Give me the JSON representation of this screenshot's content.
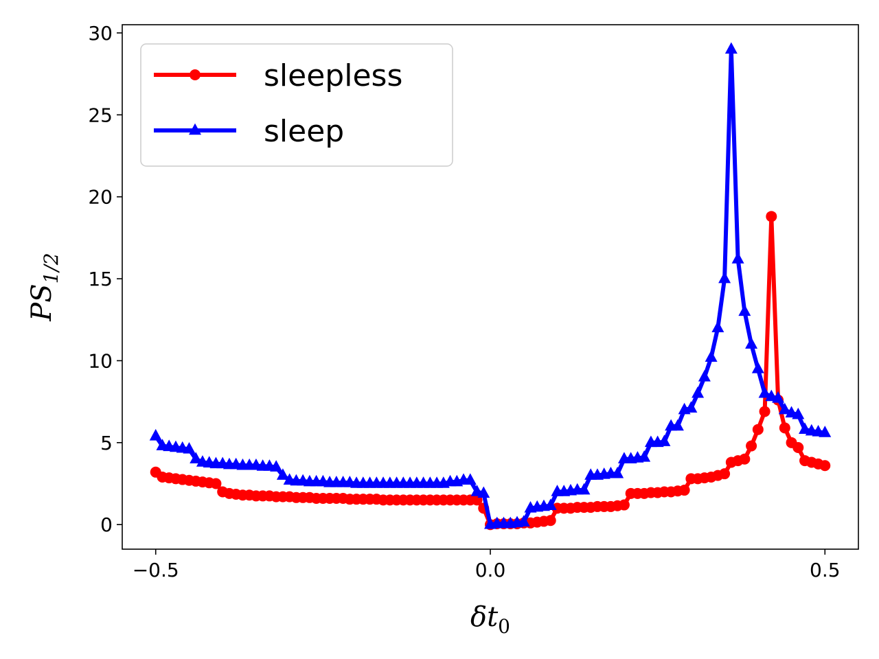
{
  "chart_data": {
    "type": "line",
    "xlabel": "δt",
    "xlabel_sub": "0",
    "ylabel": "PS",
    "ylabel_sub": "1/2",
    "xlim": [
      -0.55,
      0.55
    ],
    "ylim": [
      -1.5,
      30.5
    ],
    "xticks": [
      -0.5,
      0.0,
      0.5
    ],
    "xtick_labels": [
      "−0.5",
      "0.0",
      "0.5"
    ],
    "yticks": [
      0,
      5,
      10,
      15,
      20,
      25,
      30
    ],
    "ytick_labels": [
      "0",
      "5",
      "10",
      "15",
      "20",
      "25",
      "30"
    ],
    "grid": false,
    "legend_position": "top-left",
    "x": [
      -0.5,
      -0.49,
      -0.48,
      -0.47,
      -0.46,
      -0.45,
      -0.44,
      -0.43,
      -0.42,
      -0.41,
      -0.4,
      -0.39,
      -0.38,
      -0.37,
      -0.36,
      -0.35,
      -0.34,
      -0.33,
      -0.32,
      -0.31,
      -0.3,
      -0.29,
      -0.28,
      -0.27,
      -0.26,
      -0.25,
      -0.24,
      -0.23,
      -0.22,
      -0.21,
      -0.2,
      -0.19,
      -0.18,
      -0.17,
      -0.16,
      -0.15,
      -0.14,
      -0.13,
      -0.12,
      -0.11,
      -0.1,
      -0.09,
      -0.08,
      -0.07,
      -0.06,
      -0.05,
      -0.04,
      -0.03,
      -0.02,
      -0.01,
      0.0,
      0.01,
      0.02,
      0.03,
      0.04,
      0.05,
      0.06,
      0.07,
      0.08,
      0.09,
      0.1,
      0.11,
      0.12,
      0.13,
      0.14,
      0.15,
      0.16,
      0.17,
      0.18,
      0.19,
      0.2,
      0.21,
      0.22,
      0.23,
      0.24,
      0.25,
      0.26,
      0.27,
      0.28,
      0.29,
      0.3,
      0.31,
      0.32,
      0.33,
      0.34,
      0.35,
      0.36,
      0.37,
      0.38,
      0.39,
      0.4,
      0.41,
      0.42,
      0.43,
      0.44,
      0.45,
      0.46,
      0.47,
      0.48,
      0.49,
      0.5
    ],
    "series": [
      {
        "name": "sleepless",
        "color": "#ff0000",
        "marker": "circle",
        "values": [
          3.2,
          2.9,
          2.85,
          2.8,
          2.75,
          2.7,
          2.65,
          2.6,
          2.55,
          2.5,
          2.0,
          1.9,
          1.85,
          1.8,
          1.8,
          1.75,
          1.75,
          1.75,
          1.7,
          1.7,
          1.7,
          1.65,
          1.65,
          1.65,
          1.6,
          1.6,
          1.6,
          1.6,
          1.6,
          1.55,
          1.55,
          1.55,
          1.55,
          1.55,
          1.5,
          1.5,
          1.5,
          1.5,
          1.5,
          1.5,
          1.5,
          1.5,
          1.5,
          1.5,
          1.5,
          1.5,
          1.5,
          1.5,
          1.5,
          1.0,
          0.0,
          0.05,
          0.05,
          0.05,
          0.05,
          0.1,
          0.1,
          0.15,
          0.2,
          0.25,
          1.0,
          1.0,
          1.0,
          1.05,
          1.05,
          1.05,
          1.1,
          1.1,
          1.1,
          1.15,
          1.2,
          1.9,
          1.9,
          1.9,
          1.95,
          1.95,
          2.0,
          2.0,
          2.05,
          2.1,
          2.8,
          2.8,
          2.85,
          2.9,
          3.0,
          3.1,
          3.8,
          3.9,
          4.0,
          4.8,
          5.8,
          6.9,
          18.8,
          7.6,
          5.9,
          5.0,
          4.7,
          3.9,
          3.8,
          3.7,
          3.6
        ]
      },
      {
        "name": "sleep",
        "color": "#0000ff",
        "marker": "triangle",
        "values": [
          5.4,
          4.8,
          4.75,
          4.7,
          4.65,
          4.6,
          4.0,
          3.8,
          3.75,
          3.7,
          3.7,
          3.65,
          3.65,
          3.6,
          3.6,
          3.6,
          3.55,
          3.55,
          3.5,
          3.0,
          2.7,
          2.65,
          2.65,
          2.6,
          2.6,
          2.6,
          2.55,
          2.55,
          2.55,
          2.55,
          2.5,
          2.5,
          2.5,
          2.5,
          2.5,
          2.5,
          2.5,
          2.5,
          2.5,
          2.5,
          2.5,
          2.5,
          2.5,
          2.5,
          2.6,
          2.6,
          2.7,
          2.7,
          2.0,
          1.9,
          0.0,
          0.05,
          0.05,
          0.05,
          0.1,
          0.15,
          1.0,
          1.05,
          1.1,
          1.15,
          2.0,
          2.0,
          2.05,
          2.1,
          2.1,
          3.0,
          3.0,
          3.05,
          3.1,
          3.1,
          4.0,
          4.0,
          4.05,
          4.1,
          5.0,
          5.0,
          5.05,
          6.0,
          6.0,
          7.0,
          7.1,
          8.0,
          9.0,
          10.2,
          12.0,
          15.0,
          29.0,
          16.2,
          13.0,
          11.0,
          9.5,
          8.0,
          7.8,
          7.7,
          7.0,
          6.8,
          6.7,
          5.8,
          5.7,
          5.65,
          5.6
        ]
      }
    ]
  }
}
